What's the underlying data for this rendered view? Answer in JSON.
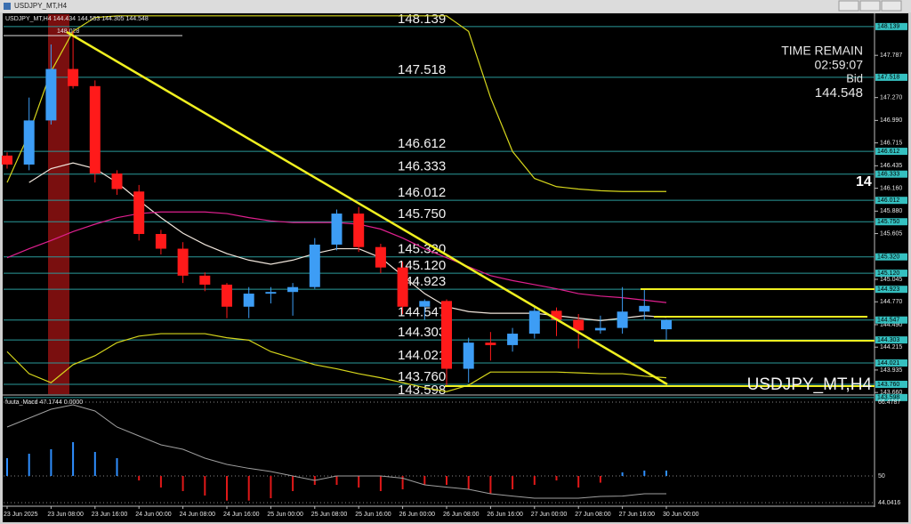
{
  "window": {
    "title": "USDJPY_MT,H4"
  },
  "info": {
    "time_remain_label": "TIME REMAIN",
    "time_remain": "02:59:07",
    "bid_label": "Bid",
    "bid": 144.548,
    "watermark": "USDJPY_MT,H4",
    "partial_price": "14"
  },
  "chart_data": [
    {
      "type": "candlestick",
      "title": "USDJPY_MT,H4",
      "categories": [
        "23 Jun 2025",
        null,
        "23 Jun 08:00",
        null,
        "23 Jun 16:00",
        null,
        "24 Jun 00:00",
        null,
        "24 Jun 08:00",
        null,
        "24 Jun 16:00",
        null,
        "25 Jun 00:00",
        null,
        "25 Jun 08:00",
        null,
        "25 Jun 16:00",
        null,
        "26 Jun 00:00",
        null,
        "26 Jun 08:00",
        null,
        "26 Jun 16:00",
        null,
        "27 Jun 00:00",
        null,
        "27 Jun 08:00",
        null,
        "27 Jun 16:00",
        null,
        "30 Jun 00:00"
      ],
      "open": [
        146.56,
        146.45,
        146.99,
        147.62,
        147.41,
        146.34,
        146.12,
        145.6,
        145.42,
        145.09,
        144.98,
        144.71,
        144.87,
        144.89,
        144.95,
        145.47,
        145.85,
        145.44,
        145.19,
        144.71,
        144.78,
        143.95,
        144.27,
        144.24,
        144.38,
        144.66,
        144.55,
        144.42,
        144.45,
        144.65,
        144.434
      ],
      "high": [
        146.6,
        147.27,
        147.92,
        148.08,
        147.48,
        146.38,
        146.2,
        145.65,
        145.5,
        145.13,
        145.0,
        144.95,
        144.95,
        145.0,
        145.55,
        145.9,
        145.93,
        145.48,
        145.26,
        144.8,
        144.8,
        144.33,
        144.4,
        144.45,
        144.72,
        144.7,
        144.62,
        144.6,
        144.95,
        144.93,
        144.553
      ],
      "low": [
        146.4,
        146.38,
        146.94,
        147.38,
        146.23,
        146.08,
        145.52,
        145.35,
        145.0,
        144.9,
        144.57,
        144.57,
        144.75,
        144.6,
        144.93,
        145.4,
        145.38,
        145.12,
        144.62,
        144.55,
        143.75,
        143.78,
        144.05,
        144.16,
        144.32,
        144.35,
        144.2,
        144.38,
        144.38,
        144.55,
        144.305
      ],
      "close": [
        146.45,
        146.99,
        147.62,
        147.41,
        146.34,
        146.15,
        145.6,
        145.42,
        145.09,
        144.98,
        144.71,
        144.87,
        144.89,
        144.95,
        145.47,
        145.85,
        145.44,
        145.19,
        144.71,
        144.78,
        143.95,
        144.27,
        144.24,
        144.38,
        144.66,
        144.55,
        144.42,
        144.45,
        144.65,
        144.72,
        144.548
      ],
      "up_color": "#3d9df5",
      "down_color": "#ff1a1a",
      "lines": [
        {
          "color": "#f0e6dc",
          "values": [
            null,
            146.23,
            146.4,
            146.47,
            146.4,
            146.23,
            146.01,
            145.8,
            145.61,
            145.47,
            145.36,
            145.28,
            145.23,
            145.28,
            145.36,
            145.42,
            145.42,
            145.31,
            145.09,
            144.87,
            144.71,
            144.65,
            144.63,
            144.63,
            144.63,
            144.6,
            144.57,
            144.54,
            144.57,
            144.6,
            144.58
          ]
        },
        {
          "color": "#e0208f",
          "values": [
            145.31,
            145.42,
            145.52,
            145.63,
            145.72,
            145.8,
            145.85,
            145.87,
            145.87,
            145.87,
            145.85,
            145.8,
            145.76,
            145.74,
            145.74,
            145.74,
            145.72,
            145.66,
            145.55,
            145.42,
            145.31,
            145.2,
            145.09,
            145.03,
            144.98,
            144.93,
            144.87,
            144.84,
            144.82,
            144.79,
            144.76
          ]
        },
        {
          "color": "#d6d61c",
          "values": [
            146.23,
            146.83,
            147.59,
            148.08,
            148.25,
            148.27,
            148.27,
            148.27,
            148.27,
            148.27,
            148.27,
            148.27,
            148.27,
            148.27,
            148.27,
            148.27,
            148.27,
            148.27,
            148.27,
            148.27,
            148.27,
            148.08,
            147.27,
            146.61,
            146.28,
            146.18,
            146.15,
            146.13,
            146.12,
            146.12,
            146.12
          ]
        },
        {
          "color": "#d6d61c",
          "values": [
            144.16,
            143.89,
            143.78,
            144.0,
            144.11,
            144.27,
            144.35,
            144.38,
            144.38,
            144.38,
            144.33,
            144.3,
            144.16,
            144.08,
            144.0,
            143.95,
            143.89,
            143.84,
            143.78,
            143.72,
            143.67,
            143.75,
            143.91,
            143.91,
            143.91,
            143.91,
            143.9,
            143.89,
            143.89,
            143.86,
            143.84
          ]
        }
      ],
      "levels": [
        {
          "value": 148.139,
          "label": "148.139"
        },
        {
          "value": 147.518,
          "label": "147.518"
        },
        {
          "value": 146.612,
          "label": "146.612"
        },
        {
          "value": 146.333,
          "label": "146.333"
        },
        {
          "value": 146.012,
          "label": "146.012"
        },
        {
          "value": 145.75,
          "label": "145.750"
        },
        {
          "value": 145.32,
          "label": "145.320"
        },
        {
          "value": 145.12,
          "label": "145.120"
        },
        {
          "value": 144.923,
          "label": "144.923"
        },
        {
          "value": 144.547,
          "label": "144.547"
        },
        {
          "value": 144.303,
          "label": "144.303"
        },
        {
          "value": 144.021,
          "label": "144.021"
        },
        {
          "value": 143.76,
          "label": "143.760"
        },
        {
          "value": 143.598,
          "label": "143.598"
        }
      ],
      "level_color": "#2a9a9a",
      "high_marker": {
        "value": 148.028,
        "label": "148.028"
      },
      "ylim": [
        143.64,
        148.29
      ],
      "yticks": [
        {
          "value": 147.787,
          "label": "147.787"
        },
        {
          "value": 147.27,
          "label": "147.270"
        },
        {
          "value": 146.99,
          "label": "146.990"
        },
        {
          "value": 146.715,
          "label": "146.715"
        },
        {
          "value": 146.435,
          "label": "146.435"
        },
        {
          "value": 146.16,
          "label": "146.160"
        },
        {
          "value": 145.88,
          "label": "145.880"
        },
        {
          "value": 145.605,
          "label": "145.605"
        },
        {
          "value": 145.045,
          "label": "145.045"
        },
        {
          "value": 144.77,
          "label": "144.770"
        },
        {
          "value": 144.49,
          "label": "144.490"
        },
        {
          "value": 144.215,
          "label": "144.215"
        },
        {
          "value": 143.935,
          "label": "143.935"
        },
        {
          "value": 143.66,
          "label": "143.660"
        }
      ]
    },
    {
      "type": "bar",
      "title": "fuuta_Macd 47.1744 0.0000",
      "values": [
        53.97,
        54.96,
        55.96,
        57.54,
        55.36,
        53.97,
        49.0,
        47.42,
        46.62,
        45.63,
        44.5,
        44.5,
        45.03,
        46.62,
        48.01,
        48.01,
        47.42,
        46.62,
        47.02,
        48.01,
        48.01,
        47.02,
        46.03,
        47.02,
        48.01,
        49.0,
        47.42,
        48.5,
        50.8,
        51.2,
        51.2
      ],
      "signal": [
        60.92,
        62.9,
        64.89,
        65.88,
        64.49,
        60.92,
        58.93,
        56.95,
        55.96,
        53.97,
        52.58,
        51.7,
        50.99,
        50.0,
        49.0,
        50.0,
        50.0,
        50.0,
        49.5,
        48.01,
        47.5,
        47.02,
        46.03,
        45.5,
        45.03,
        45.03,
        45.03,
        45.43,
        45.5,
        46.03,
        46.03
      ],
      "base": 50,
      "up_color": "#2f8fff",
      "down_color": "#e01818",
      "signal_color": "#a0a0a0",
      "ylim": [
        44.0416,
        66.4787
      ],
      "yticks": [
        {
          "value": 66.4787,
          "label": "66.4787"
        },
        50,
        {
          "value": 44.0416,
          "label": "44.0416"
        }
      ]
    }
  ]
}
